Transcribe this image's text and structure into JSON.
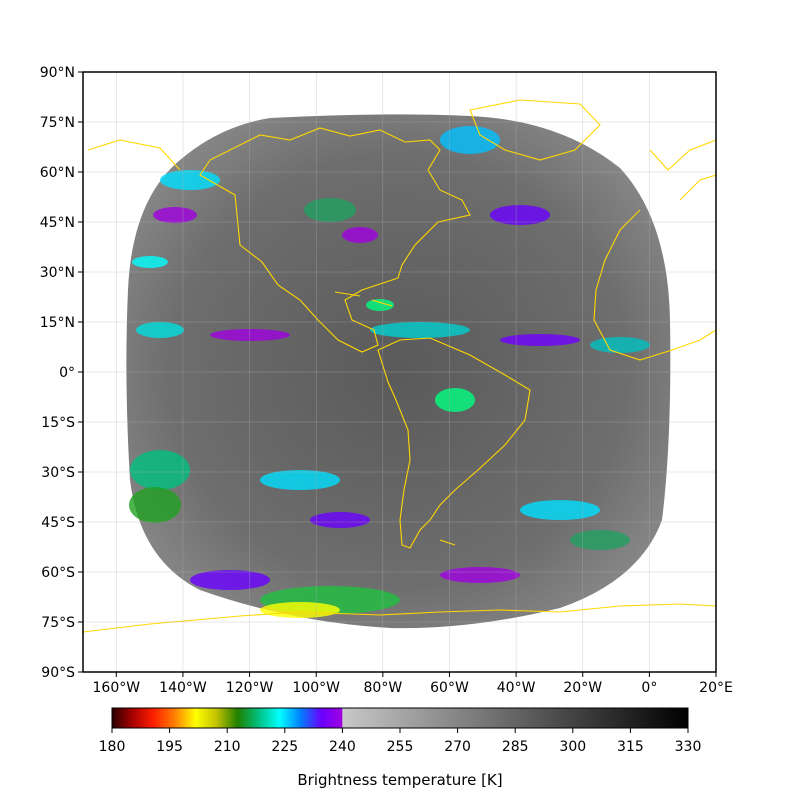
{
  "map": {
    "lon_range": [
      -170,
      20
    ],
    "lat_range": [
      -90,
      90
    ],
    "lat_ticks": [
      {
        "value": 90,
        "label": "90°N"
      },
      {
        "value": 75,
        "label": "75°N"
      },
      {
        "value": 60,
        "label": "60°N"
      },
      {
        "value": 45,
        "label": "45°N"
      },
      {
        "value": 30,
        "label": "30°N"
      },
      {
        "value": 15,
        "label": "15°N"
      },
      {
        "value": 0,
        "label": "0°"
      },
      {
        "value": -15,
        "label": "15°S"
      },
      {
        "value": -30,
        "label": "30°S"
      },
      {
        "value": -45,
        "label": "45°S"
      },
      {
        "value": -60,
        "label": "60°S"
      },
      {
        "value": -75,
        "label": "75°S"
      },
      {
        "value": -90,
        "label": "90°S"
      }
    ],
    "lon_ticks": [
      {
        "value": -160,
        "label": "160°W"
      },
      {
        "value": -140,
        "label": "140°W"
      },
      {
        "value": -120,
        "label": "120°W"
      },
      {
        "value": -100,
        "label": "100°W"
      },
      {
        "value": -80,
        "label": "80°W"
      },
      {
        "value": -60,
        "label": "60°W"
      },
      {
        "value": -40,
        "label": "40°W"
      },
      {
        "value": -20,
        "label": "20°W"
      },
      {
        "value": 0,
        "label": "0°"
      },
      {
        "value": 20,
        "label": "20°E"
      }
    ],
    "grid": true,
    "coastline_color": "#ffd700",
    "disk_center_lon": -75,
    "disk_background": "#6a6a6a"
  },
  "colorbar": {
    "label": "Brightness temperature [K]",
    "range": [
      180,
      330
    ],
    "ticks": [
      "180",
      "195",
      "210",
      "225",
      "240",
      "255",
      "270",
      "285",
      "300",
      "315",
      "330"
    ],
    "colored_until": 240,
    "color_stops": [
      "#2a0000",
      "#aa0000",
      "#ff2000",
      "#ff8000",
      "#ffff00",
      "#c0c000",
      "#208000",
      "#00c080",
      "#00ffff",
      "#0080ff",
      "#6a00ff",
      "#a000e0"
    ],
    "gray_stops": [
      "#c8c8c8",
      "#000000"
    ]
  }
}
